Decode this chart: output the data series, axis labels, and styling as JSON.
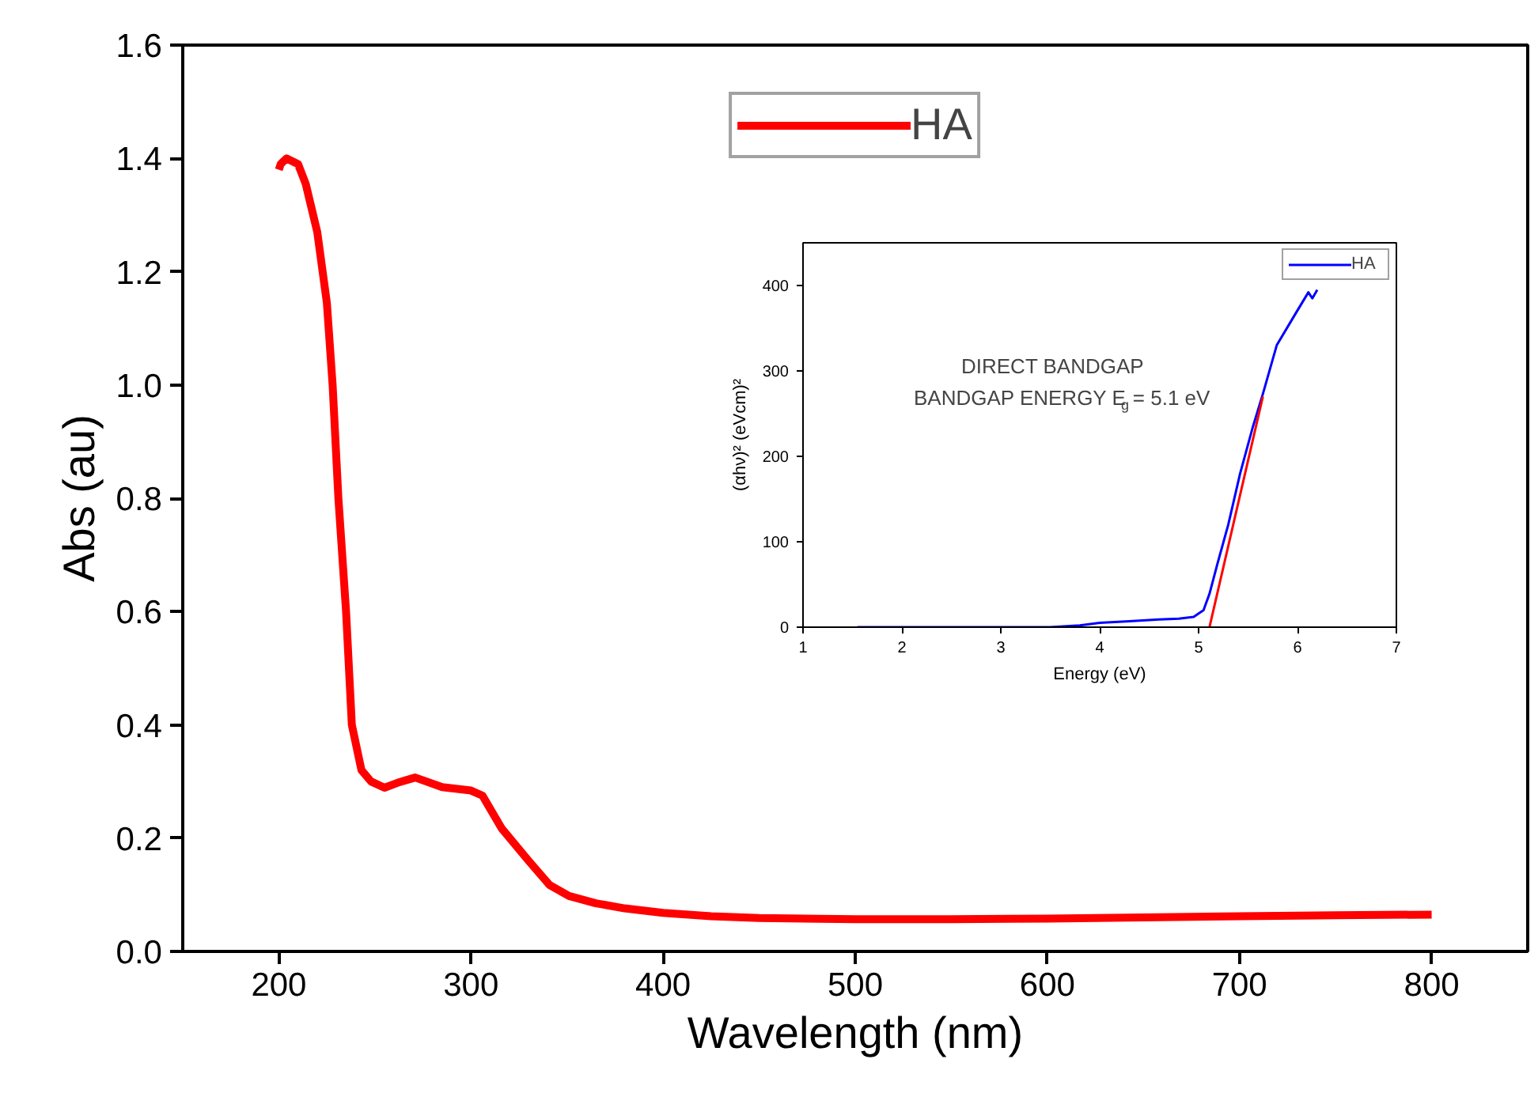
{
  "chart_data": [
    {
      "type": "line",
      "xlabel": "Wavelength (nm)",
      "ylabel": "Abs (au)",
      "xlim": [
        150,
        850
      ],
      "ylim": [
        0,
        1.6
      ],
      "xticks": [
        200,
        300,
        400,
        500,
        600,
        700,
        800
      ],
      "yticks": [
        {
          "value": 0,
          "label": "0.0"
        },
        0.2,
        0.4,
        0.6,
        0.8,
        {
          "value": 1,
          "label": "1.0"
        },
        1.2,
        1.4,
        1.6
      ],
      "grid": false,
      "legend": "top",
      "series": [
        {
          "name": "HA",
          "color": "#ff0000",
          "x": [
            200,
            201,
            204,
            210,
            214,
            220,
            225,
            228,
            231,
            235,
            238,
            243,
            248,
            255,
            262,
            271,
            285,
            300,
            306,
            316,
            330,
            341,
            351,
            365,
            380,
            400,
            425,
            450,
            500,
            550,
            600,
            650,
            700,
            750,
            800
          ],
          "values": [
            1.38,
            1.39,
            1.4,
            1.39,
            1.355,
            1.27,
            1.145,
            1.0,
            0.8,
            0.6,
            0.4,
            0.32,
            0.3,
            0.289,
            0.298,
            0.307,
            0.29,
            0.284,
            0.275,
            0.217,
            0.16,
            0.117,
            0.098,
            0.085,
            0.076,
            0.068,
            0.062,
            0.059,
            0.057,
            0.057,
            0.058,
            0.06,
            0.062,
            0.064,
            0.065
          ]
        }
      ]
    },
    {
      "type": "line",
      "xlabel": "Energy (eV)",
      "ylabel": "(αhν)² (eVcm)²",
      "xlim": [
        1,
        7
      ],
      "ylim": [
        0,
        450
      ],
      "xticks": [
        1,
        2,
        3,
        4,
        5,
        6,
        7
      ],
      "yticks": [
        0,
        100,
        200,
        300,
        400
      ],
      "grid": false,
      "legend": "top right",
      "annotations": [
        "DIRECT BANDGAP",
        "BANDGAP ENERGY E$_{g}$ = 5.1 eV"
      ],
      "series": [
        {
          "name": "HA",
          "color": "#0000ff",
          "x": [
            1.55,
            2.5,
            3.5,
            3.8,
            4.0,
            4.3,
            4.6,
            4.8,
            4.95,
            5.05,
            5.11,
            5.19,
            5.3,
            5.42,
            5.55,
            5.65,
            5.79,
            5.98,
            6.11,
            6.15,
            6.2
          ],
          "values": [
            0,
            0,
            0,
            2,
            5,
            7,
            9,
            10,
            12,
            20,
            39,
            74,
            120,
            180,
            235,
            273,
            330,
            367,
            392,
            385,
            395
          ]
        },
        {
          "color": "#ff0000",
          "x": [
            5.11,
            5.65
          ],
          "values": [
            0,
            270
          ]
        }
      ]
    }
  ]
}
